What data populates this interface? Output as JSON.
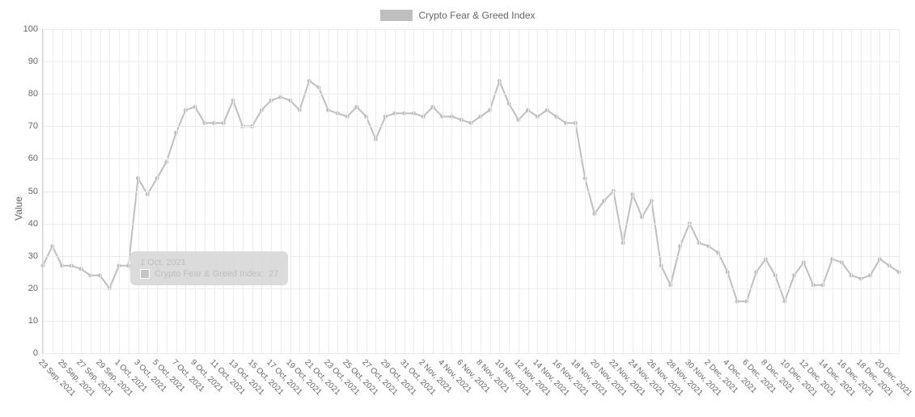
{
  "chart": {
    "type": "line",
    "legend": {
      "label": "Crypto Fear & Greed Index",
      "swatch_color": "#bfbfbf"
    },
    "y_axis": {
      "label": "Value",
      "min": 0,
      "max": 100,
      "tick_step": 10,
      "ticks": [
        0,
        10,
        20,
        30,
        40,
        50,
        60,
        70,
        80,
        90,
        100
      ]
    },
    "x_axis": {
      "labels_shown": [
        "23 Sep, 2021",
        "25 Sep, 2021",
        "27 Sep, 2021",
        "29 Sep, 2021",
        "1 Oct, 2021",
        "3 Oct, 2021",
        "5 Oct, 2021",
        "7 Oct, 2021",
        "9 Oct, 2021",
        "11 Oct, 2021",
        "13 Oct, 2021",
        "15 Oct, 2021",
        "17 Oct, 2021",
        "19 Oct, 2021",
        "21 Oct, 2021",
        "23 Oct, 2021",
        "25 Oct, 2021",
        "27 Oct, 2021",
        "29 Oct, 2021",
        "31 Oct, 2021",
        "2 Nov, 2021",
        "4 Nov, 2021",
        "6 Nov, 2021",
        "8 Nov, 2021",
        "10 Nov, 2021",
        "12 Nov, 2021",
        "14 Nov, 2021",
        "16 Nov, 2021",
        "18 Nov, 2021",
        "20 Nov, 2021",
        "22 Nov, 2021",
        "24 Nov, 2021",
        "26 Nov, 2021",
        "28 Nov, 2021",
        "30 Nov, 2021",
        "2 Dec, 2021",
        "4 Dec, 2021",
        "6 Dec, 2021",
        "8 Dec, 2021",
        "10 Dec, 2021",
        "12 Dec, 2021",
        "14 Dec, 2021",
        "16 Dec, 2021",
        "18 Dec, 2021",
        "20 Dec, 2021"
      ],
      "label_step_points": 2
    },
    "series": {
      "color": "#bfbfbf",
      "line_width": 2,
      "marker_radius": 2.5,
      "marker_color": "#bfbfbf",
      "points": [
        {
          "x": "23 Sep, 2021",
          "y": 27
        },
        {
          "x": "24 Sep, 2021",
          "y": 33
        },
        {
          "x": "25 Sep, 2021",
          "y": 27
        },
        {
          "x": "26 Sep, 2021",
          "y": 27
        },
        {
          "x": "27 Sep, 2021",
          "y": 26
        },
        {
          "x": "28 Sep, 2021",
          "y": 24
        },
        {
          "x": "29 Sep, 2021",
          "y": 24
        },
        {
          "x": "30 Sep, 2021",
          "y": 20
        },
        {
          "x": "1 Oct, 2021",
          "y": 27
        },
        {
          "x": "2 Oct, 2021",
          "y": 27
        },
        {
          "x": "3 Oct, 2021",
          "y": 54
        },
        {
          "x": "4 Oct, 2021",
          "y": 49
        },
        {
          "x": "5 Oct, 2021",
          "y": 54
        },
        {
          "x": "6 Oct, 2021",
          "y": 59
        },
        {
          "x": "7 Oct, 2021",
          "y": 68
        },
        {
          "x": "8 Oct, 2021",
          "y": 75
        },
        {
          "x": "9 Oct, 2021",
          "y": 76
        },
        {
          "x": "10 Oct, 2021",
          "y": 71
        },
        {
          "x": "11 Oct, 2021",
          "y": 71
        },
        {
          "x": "12 Oct, 2021",
          "y": 71
        },
        {
          "x": "13 Oct, 2021",
          "y": 78
        },
        {
          "x": "14 Oct, 2021",
          "y": 70
        },
        {
          "x": "15 Oct, 2021",
          "y": 70
        },
        {
          "x": "16 Oct, 2021",
          "y": 75
        },
        {
          "x": "17 Oct, 2021",
          "y": 78
        },
        {
          "x": "18 Oct, 2021",
          "y": 79
        },
        {
          "x": "19 Oct, 2021",
          "y": 78
        },
        {
          "x": "20 Oct, 2021",
          "y": 75
        },
        {
          "x": "21 Oct, 2021",
          "y": 84
        },
        {
          "x": "22 Oct, 2021",
          "y": 82
        },
        {
          "x": "23 Oct, 2021",
          "y": 75
        },
        {
          "x": "24 Oct, 2021",
          "y": 74
        },
        {
          "x": "25 Oct, 2021",
          "y": 73
        },
        {
          "x": "26 Oct, 2021",
          "y": 76
        },
        {
          "x": "27 Oct, 2021",
          "y": 73
        },
        {
          "x": "28 Oct, 2021",
          "y": 66
        },
        {
          "x": "29 Oct, 2021",
          "y": 73
        },
        {
          "x": "30 Oct, 2021",
          "y": 74
        },
        {
          "x": "31 Oct, 2021",
          "y": 74
        },
        {
          "x": "1 Nov, 2021",
          "y": 74
        },
        {
          "x": "2 Nov, 2021",
          "y": 73
        },
        {
          "x": "3 Nov, 2021",
          "y": 76
        },
        {
          "x": "4 Nov, 2021",
          "y": 73
        },
        {
          "x": "5 Nov, 2021",
          "y": 73
        },
        {
          "x": "6 Nov, 2021",
          "y": 72
        },
        {
          "x": "7 Nov, 2021",
          "y": 71
        },
        {
          "x": "8 Nov, 2021",
          "y": 73
        },
        {
          "x": "9 Nov, 2021",
          "y": 75
        },
        {
          "x": "10 Nov, 2021",
          "y": 84
        },
        {
          "x": "11 Nov, 2021",
          "y": 77
        },
        {
          "x": "12 Nov, 2021",
          "y": 72
        },
        {
          "x": "13 Nov, 2021",
          "y": 75
        },
        {
          "x": "14 Nov, 2021",
          "y": 73
        },
        {
          "x": "15 Nov, 2021",
          "y": 75
        },
        {
          "x": "16 Nov, 2021",
          "y": 73
        },
        {
          "x": "17 Nov, 2021",
          "y": 71
        },
        {
          "x": "18 Nov, 2021",
          "y": 71
        },
        {
          "x": "19 Nov, 2021",
          "y": 54
        },
        {
          "x": "20 Nov, 2021",
          "y": 43
        },
        {
          "x": "21 Nov, 2021",
          "y": 47
        },
        {
          "x": "22 Nov, 2021",
          "y": 50
        },
        {
          "x": "23 Nov, 2021",
          "y": 34
        },
        {
          "x": "24 Nov, 2021",
          "y": 49
        },
        {
          "x": "25 Nov, 2021",
          "y": 42
        },
        {
          "x": "26 Nov, 2021",
          "y": 47
        },
        {
          "x": "27 Nov, 2021",
          "y": 27
        },
        {
          "x": "28 Nov, 2021",
          "y": 21
        },
        {
          "x": "29 Nov, 2021",
          "y": 33
        },
        {
          "x": "30 Nov, 2021",
          "y": 40
        },
        {
          "x": "1 Dec, 2021",
          "y": 34
        },
        {
          "x": "2 Dec, 2021",
          "y": 33
        },
        {
          "x": "3 Dec, 2021",
          "y": 31
        },
        {
          "x": "4 Dec, 2021",
          "y": 25
        },
        {
          "x": "5 Dec, 2021",
          "y": 16
        },
        {
          "x": "6 Dec, 2021",
          "y": 16
        },
        {
          "x": "7 Dec, 2021",
          "y": 25
        },
        {
          "x": "8 Dec, 2021",
          "y": 29
        },
        {
          "x": "9 Dec, 2021",
          "y": 24
        },
        {
          "x": "10 Dec, 2021",
          "y": 16
        },
        {
          "x": "11 Dec, 2021",
          "y": 24
        },
        {
          "x": "12 Dec, 2021",
          "y": 28
        },
        {
          "x": "13 Dec, 2021",
          "y": 21
        },
        {
          "x": "14 Dec, 2021",
          "y": 21
        },
        {
          "x": "15 Dec, 2021",
          "y": 29
        },
        {
          "x": "16 Dec, 2021",
          "y": 28
        },
        {
          "x": "17 Dec, 2021",
          "y": 24
        },
        {
          "x": "18 Dec, 2021",
          "y": 23
        },
        {
          "x": "19 Dec, 2021",
          "y": 24
        },
        {
          "x": "20 Dec, 2021",
          "y": 29
        },
        {
          "x": "21 Dec, 2021",
          "y": 27
        },
        {
          "x": "22 Dec, 2021",
          "y": 25
        }
      ]
    },
    "tooltip": {
      "visible": true,
      "anchor_index": 8,
      "title": "1 Oct, 2021",
      "series_label": "Crypto Fear & Greed Index:",
      "value": "27",
      "swatch_color": "#bfbfbf"
    },
    "grid": {
      "color": "#ececec"
    },
    "background_color": "#ffffff",
    "axis_color": "#d0d0d0",
    "text_color": "#666666"
  }
}
